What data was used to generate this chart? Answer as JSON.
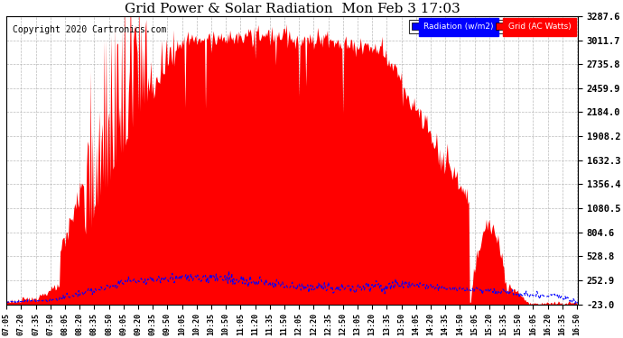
{
  "title": "Grid Power & Solar Radiation  Mon Feb 3 17:03",
  "copyright": "Copyright 2020 Cartronics.com",
  "yticks": [
    -23.0,
    252.9,
    528.8,
    804.6,
    1080.5,
    1356.4,
    1632.3,
    1908.2,
    2184.0,
    2459.9,
    2735.8,
    3011.7,
    3287.6
  ],
  "ymin": -23.0,
  "ymax": 3287.6,
  "legend_radiation_label": "Radiation (w/m2)",
  "legend_grid_label": "Grid (AC Watts)",
  "background_color": "#ffffff",
  "plot_bg": "#ffffff",
  "title_fontsize": 11,
  "copyright_fontsize": 7
}
